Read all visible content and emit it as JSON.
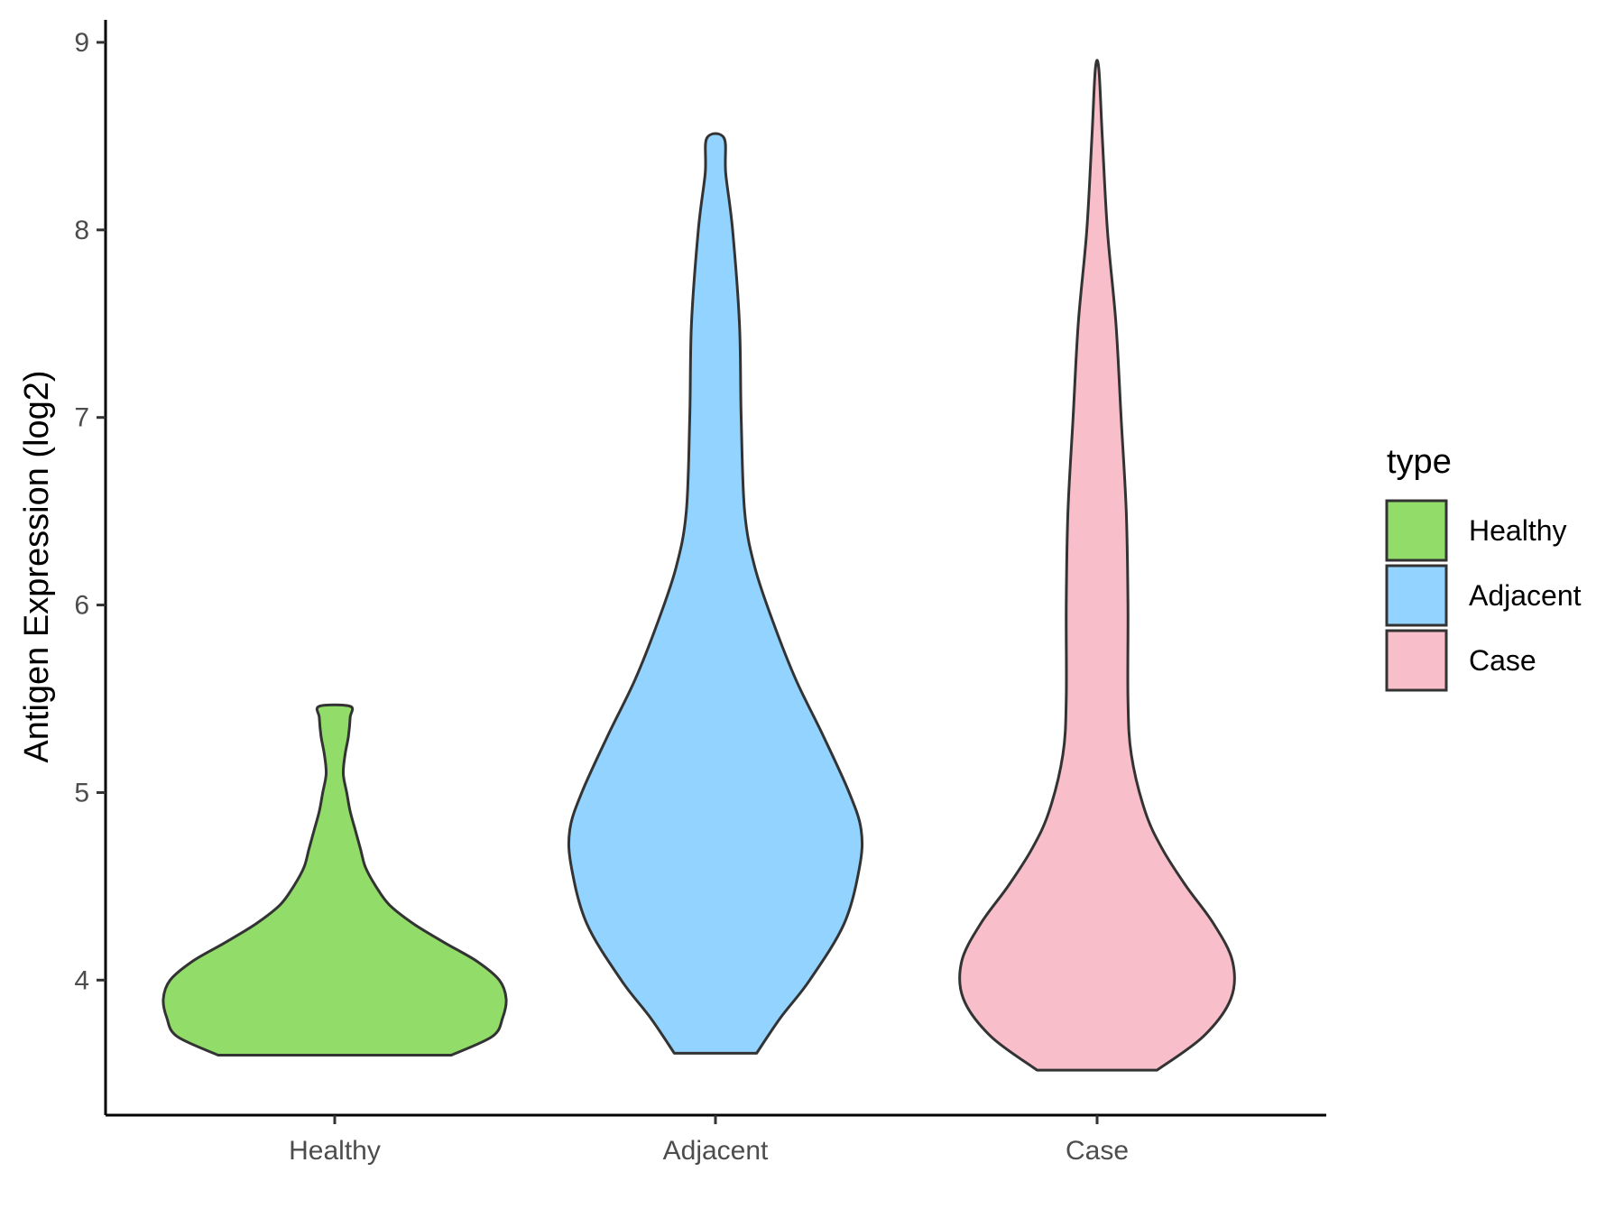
{
  "chart_data": {
    "type": "violin",
    "title": "",
    "xlabel": "",
    "ylabel": "Antigen Expression (log2)",
    "ylim": [
      3.28,
      9.12
    ],
    "yticks": [
      4,
      5,
      6,
      7,
      8,
      9
    ],
    "categories": [
      "Healthy",
      "Adjacent",
      "Case"
    ],
    "grid": false,
    "legend": {
      "title": "type",
      "position": "right",
      "items": [
        "Healthy",
        "Adjacent",
        "Case"
      ]
    },
    "series": [
      {
        "name": "Healthy",
        "color": "#92DC6A",
        "y_range": [
          3.6,
          5.46
        ],
        "density_profile": [
          [
            3.6,
            0.68
          ],
          [
            3.7,
            0.92
          ],
          [
            3.8,
            0.98
          ],
          [
            3.9,
            1.0
          ],
          [
            4.0,
            0.96
          ],
          [
            4.1,
            0.83
          ],
          [
            4.2,
            0.64
          ],
          [
            4.3,
            0.46
          ],
          [
            4.4,
            0.32
          ],
          [
            4.5,
            0.24
          ],
          [
            4.6,
            0.18
          ],
          [
            4.7,
            0.15
          ],
          [
            4.8,
            0.12
          ],
          [
            4.9,
            0.09
          ],
          [
            5.0,
            0.07
          ],
          [
            5.1,
            0.05
          ],
          [
            5.2,
            0.06
          ],
          [
            5.3,
            0.08
          ],
          [
            5.4,
            0.09
          ],
          [
            5.46,
            0.09
          ]
        ]
      },
      {
        "name": "Adjacent",
        "color": "#92D3FF",
        "y_range": [
          3.61,
          8.49
        ],
        "density_profile": [
          [
            3.61,
            0.24
          ],
          [
            3.8,
            0.38
          ],
          [
            4.0,
            0.55
          ],
          [
            4.3,
            0.75
          ],
          [
            4.6,
            0.84
          ],
          [
            4.8,
            0.85
          ],
          [
            5.0,
            0.78
          ],
          [
            5.3,
            0.63
          ],
          [
            5.6,
            0.47
          ],
          [
            5.9,
            0.34
          ],
          [
            6.2,
            0.23
          ],
          [
            6.5,
            0.17
          ],
          [
            7.0,
            0.15
          ],
          [
            7.5,
            0.14
          ],
          [
            8.0,
            0.1
          ],
          [
            8.3,
            0.06
          ],
          [
            8.49,
            0.05
          ]
        ]
      },
      {
        "name": "Case",
        "color": "#F8BFCA",
        "y_range": [
          3.52,
          8.86
        ],
        "density_profile": [
          [
            3.52,
            0.35
          ],
          [
            3.7,
            0.62
          ],
          [
            3.9,
            0.78
          ],
          [
            4.1,
            0.79
          ],
          [
            4.3,
            0.68
          ],
          [
            4.5,
            0.52
          ],
          [
            4.7,
            0.38
          ],
          [
            4.9,
            0.28
          ],
          [
            5.2,
            0.2
          ],
          [
            5.5,
            0.18
          ],
          [
            6.0,
            0.18
          ],
          [
            6.5,
            0.17
          ],
          [
            7.0,
            0.14
          ],
          [
            7.5,
            0.11
          ],
          [
            8.0,
            0.06
          ],
          [
            8.5,
            0.03
          ],
          [
            8.86,
            0.01
          ]
        ]
      }
    ]
  }
}
